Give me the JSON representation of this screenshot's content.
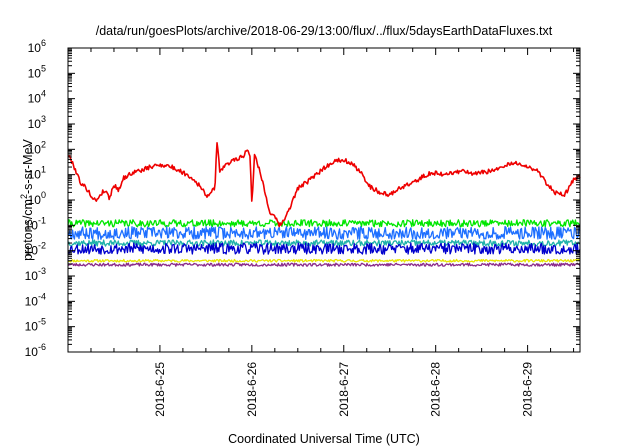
{
  "chart_data": {
    "type": "line",
    "title": "/data/run/goesPlots/archive/2018-06-29/13:00/flux/../flux/5daysEarthDataFluxes.txt",
    "xlabel": "Coordinated Universal Time (UTC)",
    "ylabel": "protons/cm²-s-sr-MeV",
    "ylabel_parts": {
      "main": "protons/cm",
      "sup": "2",
      "rest": "-s-sr-MeV"
    },
    "x_scale": "time",
    "x_start_day": "2018-6-24",
    "x_ticks": [
      {
        "day": 1,
        "label": "2018-6-25"
      },
      {
        "day": 2,
        "label": "2018-6-26"
      },
      {
        "day": 3,
        "label": "2018-6-27"
      },
      {
        "day": 4,
        "label": "2018-6-28"
      },
      {
        "day": 5,
        "label": "2018-6-29"
      }
    ],
    "xlim_days": [
      0,
      5.57
    ],
    "y_scale": "log",
    "ylim": [
      1e-06,
      1000000.0
    ],
    "y_ticks": [
      {
        "exp": 6,
        "label": "10",
        "sup": "6"
      },
      {
        "exp": 5,
        "label": "10",
        "sup": "5"
      },
      {
        "exp": 4,
        "label": "10",
        "sup": "4"
      },
      {
        "exp": 3,
        "label": "10",
        "sup": "3"
      },
      {
        "exp": 2,
        "label": "10",
        "sup": "2"
      },
      {
        "exp": 1,
        "label": "10",
        "sup": "1"
      },
      {
        "exp": 0,
        "label": "10",
        "sup": "0"
      },
      {
        "exp": -1,
        "label": "10",
        "sup": "-1"
      },
      {
        "exp": -2,
        "label": "10",
        "sup": "-2"
      },
      {
        "exp": -3,
        "label": "10",
        "sup": "-3"
      },
      {
        "exp": -4,
        "label": "10",
        "sup": "-4"
      },
      {
        "exp": -5,
        "label": "10",
        "sup": "-5"
      },
      {
        "exp": -6,
        "label": "10",
        "sup": "-6"
      }
    ],
    "grid": false,
    "legend": "none",
    "series": [
      {
        "color": "#e8e800",
        "noise": 0.05,
        "seed": 11,
        "points": [
          [
            0,
            0.004
          ],
          [
            5.57,
            0.004
          ]
        ]
      },
      {
        "color": "#8b2c8b",
        "noise": 0.06,
        "seed": 23,
        "points": [
          [
            0,
            0.0028
          ],
          [
            5.57,
            0.0028
          ]
        ]
      },
      {
        "color": "#20b2aa",
        "noise": 0.12,
        "seed": 37,
        "points": [
          [
            0,
            0.02
          ],
          [
            5.57,
            0.02
          ]
        ]
      },
      {
        "color": "#00e600",
        "noise": 0.14,
        "seed": 41,
        "points": [
          [
            0,
            0.12
          ],
          [
            5.57,
            0.12
          ]
        ]
      },
      {
        "color": "#0000cd",
        "noise": 0.22,
        "seed": 53,
        "points": [
          [
            0,
            0.012
          ],
          [
            5.57,
            0.012
          ]
        ]
      },
      {
        "color": "#1e6fff",
        "noise": 0.25,
        "seed": 67,
        "points": [
          [
            0,
            0.05
          ],
          [
            5.57,
            0.05
          ]
        ]
      },
      {
        "color": "#ee0000",
        "noise": 0.09,
        "seed": 79,
        "points": [
          [
            0.0,
            60
          ],
          [
            0.05,
            30
          ],
          [
            0.1,
            10
          ],
          [
            0.15,
            4
          ],
          [
            0.2,
            3
          ],
          [
            0.25,
            1.5
          ],
          [
            0.3,
            0.9
          ],
          [
            0.35,
            1.6
          ],
          [
            0.4,
            2.5
          ],
          [
            0.45,
            1.2
          ],
          [
            0.5,
            4
          ],
          [
            0.55,
            2.5
          ],
          [
            0.6,
            7
          ],
          [
            0.7,
            12
          ],
          [
            0.8,
            15
          ],
          [
            0.9,
            20
          ],
          [
            1.0,
            25
          ],
          [
            1.1,
            22
          ],
          [
            1.2,
            15
          ],
          [
            1.3,
            10
          ],
          [
            1.4,
            5
          ],
          [
            1.45,
            3
          ],
          [
            1.5,
            1.5
          ],
          [
            1.55,
            1.8
          ],
          [
            1.6,
            3
          ],
          [
            1.62,
            250
          ],
          [
            1.65,
            15
          ],
          [
            1.7,
            20
          ],
          [
            1.8,
            40
          ],
          [
            1.9,
            50
          ],
          [
            1.95,
            100
          ],
          [
            1.98,
            60
          ],
          [
            2.0,
            0.8
          ],
          [
            2.03,
            60
          ],
          [
            2.06,
            30
          ],
          [
            2.1,
            10
          ],
          [
            2.15,
            1.5
          ],
          [
            2.2,
            0.3
          ],
          [
            2.25,
            0.2
          ],
          [
            2.3,
            0.1
          ],
          [
            2.35,
            0.15
          ],
          [
            2.4,
            0.4
          ],
          [
            2.45,
            1
          ],
          [
            2.5,
            3
          ],
          [
            2.6,
            5
          ],
          [
            2.7,
            10
          ],
          [
            2.8,
            20
          ],
          [
            2.9,
            35
          ],
          [
            3.0,
            40
          ],
          [
            3.1,
            25
          ],
          [
            3.2,
            10
          ],
          [
            3.3,
            3
          ],
          [
            3.4,
            2
          ],
          [
            3.5,
            1.5
          ],
          [
            3.6,
            3
          ],
          [
            3.7,
            4
          ],
          [
            3.8,
            6
          ],
          [
            3.9,
            10
          ],
          [
            4.0,
            12
          ],
          [
            4.1,
            10
          ],
          [
            4.2,
            12
          ],
          [
            4.3,
            15
          ],
          [
            4.4,
            10
          ],
          [
            4.5,
            12
          ],
          [
            4.6,
            14
          ],
          [
            4.7,
            18
          ],
          [
            4.8,
            25
          ],
          [
            4.9,
            30
          ],
          [
            5.0,
            20
          ],
          [
            5.1,
            15
          ],
          [
            5.2,
            5
          ],
          [
            5.3,
            2
          ],
          [
            5.4,
            1.5
          ],
          [
            5.45,
            3
          ],
          [
            5.5,
            6
          ],
          [
            5.57,
            9
          ]
        ]
      }
    ]
  }
}
